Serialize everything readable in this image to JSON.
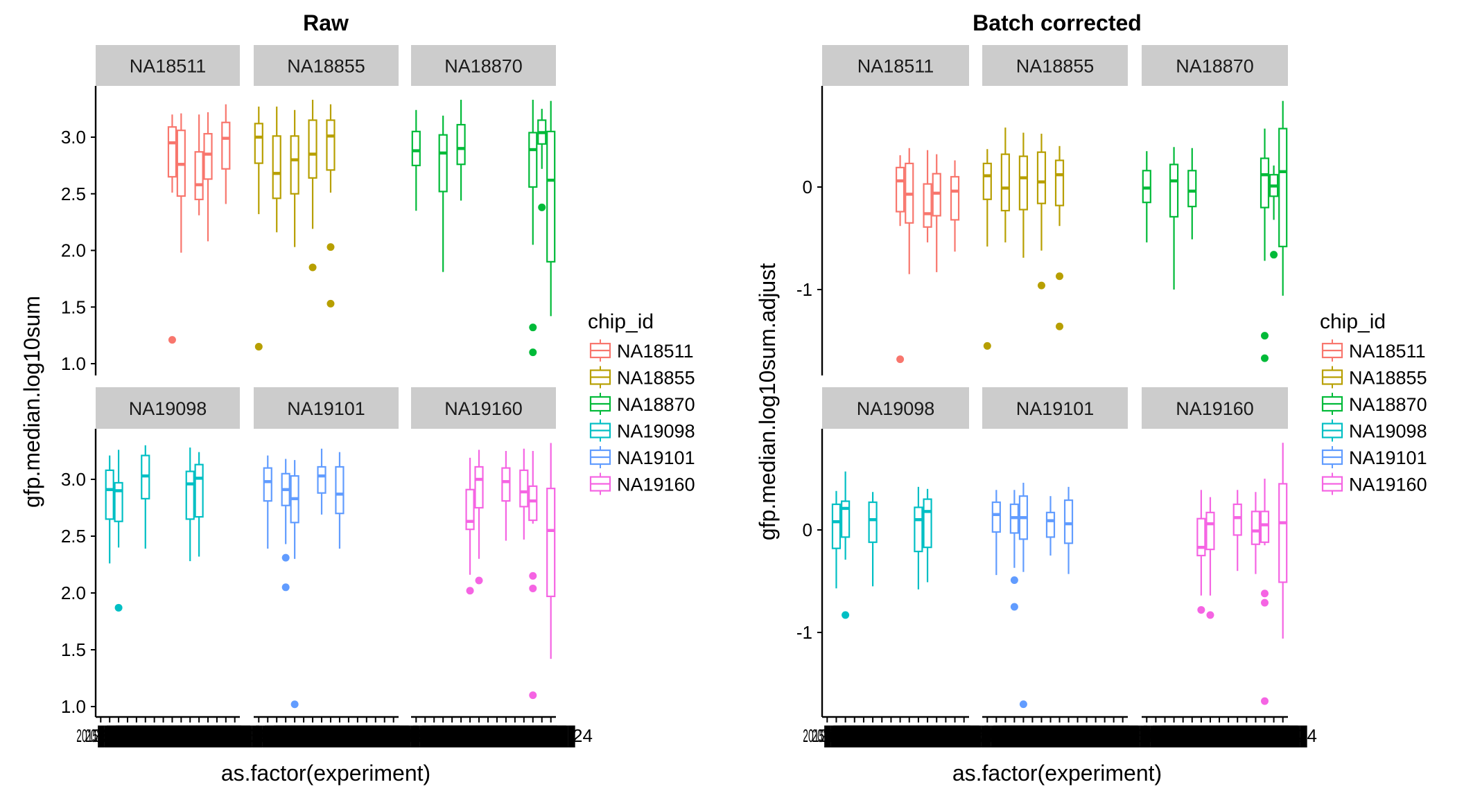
{
  "chart_data": [
    {
      "type": "boxplot",
      "title": "Raw",
      "xlabel": "as.factor(experiment)",
      "ylabel": "gfp.median.log10sum",
      "yticks": [
        1.0,
        1.5,
        2.0,
        2.5,
        3.0
      ],
      "ytick_labels": [
        "1.0",
        "1.5",
        "2.0",
        "2.5",
        "3.0"
      ],
      "n_x_categories_per_facet": 16,
      "x_tick_labels_legible": false,
      "x_tick_label_fragments": {
        "first": "2",
        "last": "24"
      },
      "facet_rows": [
        [
          "NA18511",
          "NA18855",
          "NA18870"
        ],
        [
          "NA19098",
          "NA19101",
          "NA19160"
        ]
      ],
      "facets": {
        "NA18511": [
          {
            "x": 8,
            "whisker_high": 3.2,
            "q3": 3.09,
            "median": 2.95,
            "q1": 2.65,
            "whisker_low": 2.51,
            "outliers": [
              1.21
            ]
          },
          {
            "x": 9,
            "whisker_high": 3.21,
            "q3": 3.06,
            "median": 2.76,
            "q1": 2.48,
            "whisker_low": 1.98,
            "outliers": []
          },
          {
            "x": 11,
            "whisker_high": 3.2,
            "q3": 2.87,
            "median": 2.58,
            "q1": 2.45,
            "whisker_low": 2.31,
            "outliers": []
          },
          {
            "x": 12,
            "whisker_high": 3.22,
            "q3": 3.03,
            "median": 2.85,
            "q1": 2.63,
            "whisker_low": 2.08,
            "outliers": []
          },
          {
            "x": 14,
            "whisker_high": 3.29,
            "q3": 3.13,
            "median": 2.99,
            "q1": 2.72,
            "whisker_low": 2.41,
            "outliers": []
          }
        ],
        "NA18855": [
          {
            "x": 0,
            "whisker_high": 3.27,
            "q3": 3.12,
            "median": 3.0,
            "q1": 2.77,
            "whisker_low": 2.32,
            "outliers": [
              1.15
            ]
          },
          {
            "x": 2,
            "whisker_high": 3.27,
            "q3": 3.01,
            "median": 2.68,
            "q1": 2.46,
            "whisker_low": 2.16,
            "outliers": []
          },
          {
            "x": 4,
            "whisker_high": 3.24,
            "q3": 3.01,
            "median": 2.8,
            "q1": 2.5,
            "whisker_low": 2.03,
            "outliers": []
          },
          {
            "x": 6,
            "whisker_high": 3.33,
            "q3": 3.15,
            "median": 2.85,
            "q1": 2.64,
            "whisker_low": 2.19,
            "outliers": [
              1.85
            ]
          },
          {
            "x": 8,
            "whisker_high": 3.29,
            "q3": 3.15,
            "median": 3.01,
            "q1": 2.71,
            "whisker_low": 2.51,
            "outliers": [
              2.03,
              1.53
            ]
          }
        ],
        "NA18870": [
          {
            "x": 0,
            "whisker_high": 3.24,
            "q3": 3.05,
            "median": 2.88,
            "q1": 2.75,
            "whisker_low": 2.35,
            "outliers": []
          },
          {
            "x": 3,
            "whisker_high": 3.19,
            "q3": 3.02,
            "median": 2.86,
            "q1": 2.52,
            "whisker_low": 1.81,
            "outliers": []
          },
          {
            "x": 5,
            "whisker_high": 3.33,
            "q3": 3.11,
            "median": 2.9,
            "q1": 2.76,
            "whisker_low": 2.44,
            "outliers": []
          },
          {
            "x": 13,
            "whisker_high": 3.33,
            "q3": 3.04,
            "median": 2.89,
            "q1": 2.56,
            "whisker_low": 2.05,
            "outliers": [
              1.32,
              1.1
            ]
          },
          {
            "x": 14,
            "whisker_high": 3.25,
            "q3": 3.15,
            "median": 3.04,
            "q1": 2.94,
            "whisker_low": 2.72,
            "outliers": [
              2.38
            ]
          },
          {
            "x": 15,
            "whisker_high": 3.32,
            "q3": 3.05,
            "median": 2.62,
            "q1": 1.9,
            "whisker_low": 1.42,
            "outliers": []
          }
        ],
        "NA19098": [
          {
            "x": 1,
            "whisker_high": 3.21,
            "q3": 3.08,
            "median": 2.91,
            "q1": 2.65,
            "whisker_low": 2.26,
            "outliers": []
          },
          {
            "x": 2,
            "whisker_high": 3.26,
            "q3": 2.97,
            "median": 2.9,
            "q1": 2.63,
            "whisker_low": 2.4,
            "outliers": [
              1.87
            ]
          },
          {
            "x": 5,
            "whisker_high": 3.3,
            "q3": 3.21,
            "median": 3.03,
            "q1": 2.83,
            "whisker_low": 2.39,
            "outliers": []
          },
          {
            "x": 10,
            "whisker_high": 3.28,
            "q3": 3.07,
            "median": 2.96,
            "q1": 2.65,
            "whisker_low": 2.28,
            "outliers": []
          },
          {
            "x": 11,
            "whisker_high": 3.24,
            "q3": 3.13,
            "median": 3.01,
            "q1": 2.67,
            "whisker_low": 2.32,
            "outliers": []
          }
        ],
        "NA19101": [
          {
            "x": 1,
            "whisker_high": 3.21,
            "q3": 3.1,
            "median": 2.98,
            "q1": 2.81,
            "whisker_low": 2.39,
            "outliers": []
          },
          {
            "x": 3,
            "whisker_high": 3.18,
            "q3": 3.05,
            "median": 2.91,
            "q1": 2.77,
            "whisker_low": 2.43,
            "outliers": [
              2.31,
              2.05
            ]
          },
          {
            "x": 4,
            "whisker_high": 3.17,
            "q3": 3.03,
            "median": 2.83,
            "q1": 2.62,
            "whisker_low": 2.3,
            "outliers": [
              1.02
            ]
          },
          {
            "x": 7,
            "whisker_high": 3.27,
            "q3": 3.11,
            "median": 3.03,
            "q1": 2.88,
            "whisker_low": 2.69,
            "outliers": []
          },
          {
            "x": 9,
            "whisker_high": 3.24,
            "q3": 3.11,
            "median": 2.87,
            "q1": 2.7,
            "whisker_low": 2.39,
            "outliers": []
          }
        ],
        "NA19160": [
          {
            "x": 6,
            "whisker_high": 3.19,
            "q3": 2.91,
            "median": 2.63,
            "q1": 2.56,
            "whisker_low": 2.16,
            "outliers": [
              2.02
            ]
          },
          {
            "x": 7,
            "whisker_high": 3.26,
            "q3": 3.11,
            "median": 3.0,
            "q1": 2.75,
            "whisker_low": 2.3,
            "outliers": [
              2.11
            ]
          },
          {
            "x": 10,
            "whisker_high": 3.25,
            "q3": 3.1,
            "median": 2.98,
            "q1": 2.81,
            "whisker_low": 2.46,
            "outliers": []
          },
          {
            "x": 12,
            "whisker_high": 3.27,
            "q3": 3.08,
            "median": 2.89,
            "q1": 2.76,
            "whisker_low": 2.47,
            "outliers": []
          },
          {
            "x": 13,
            "whisker_high": 3.25,
            "q3": 2.94,
            "median": 2.81,
            "q1": 2.64,
            "whisker_low": 2.61,
            "outliers": [
              2.15,
              2.04,
              1.1
            ]
          },
          {
            "x": 15,
            "whisker_high": 3.32,
            "q3": 2.92,
            "median": 2.55,
            "q1": 1.97,
            "whisker_low": 1.42,
            "outliers": []
          }
        ]
      }
    },
    {
      "type": "boxplot",
      "title": "Batch corrected",
      "xlabel": "as.factor(experiment)",
      "ylabel": "gfp.median.log10sum.adjust",
      "yticks": [
        -1,
        0
      ],
      "ytick_labels": [
        "-1",
        "0"
      ],
      "n_x_categories_per_facet": 16,
      "x_tick_labels_legible": false,
      "x_tick_label_fragments": {
        "first": "2",
        "last": "24"
      },
      "facet_rows": [
        [
          "NA18511",
          "NA18855",
          "NA18870"
        ],
        [
          "NA19098",
          "NA19101",
          "NA19160"
        ]
      ],
      "facets": {
        "NA18511": [
          {
            "x": 8,
            "whisker_high": 0.31,
            "q3": 0.19,
            "median": 0.06,
            "q1": -0.24,
            "whisker_low": -0.38,
            "outliers": [
              -1.68
            ]
          },
          {
            "x": 9,
            "whisker_high": 0.38,
            "q3": 0.23,
            "median": -0.07,
            "q1": -0.35,
            "whisker_low": -0.85,
            "outliers": []
          },
          {
            "x": 11,
            "whisker_high": 0.36,
            "q3": 0.03,
            "median": -0.26,
            "q1": -0.39,
            "whisker_low": -0.54,
            "outliers": []
          },
          {
            "x": 12,
            "whisker_high": 0.32,
            "q3": 0.13,
            "median": -0.06,
            "q1": -0.28,
            "whisker_low": -0.83,
            "outliers": []
          },
          {
            "x": 14,
            "whisker_high": 0.26,
            "q3": 0.1,
            "median": -0.04,
            "q1": -0.32,
            "whisker_low": -0.63,
            "outliers": []
          }
        ],
        "NA18855": [
          {
            "x": 0,
            "whisker_high": 0.37,
            "q3": 0.23,
            "median": 0.11,
            "q1": -0.12,
            "whisker_low": -0.58,
            "outliers": [
              -1.55
            ]
          },
          {
            "x": 2,
            "whisker_high": 0.58,
            "q3": 0.32,
            "median": -0.01,
            "q1": -0.23,
            "whisker_low": -0.54,
            "outliers": []
          },
          {
            "x": 4,
            "whisker_high": 0.53,
            "q3": 0.3,
            "median": 0.09,
            "q1": -0.22,
            "whisker_low": -0.69,
            "outliers": []
          },
          {
            "x": 6,
            "whisker_high": 0.52,
            "q3": 0.34,
            "median": 0.05,
            "q1": -0.16,
            "whisker_low": -0.62,
            "outliers": [
              -0.96
            ]
          },
          {
            "x": 8,
            "whisker_high": 0.4,
            "q3": 0.26,
            "median": 0.12,
            "q1": -0.18,
            "whisker_low": -0.38,
            "outliers": [
              -0.87,
              -1.36
            ]
          }
        ],
        "NA18870": [
          {
            "x": 0,
            "whisker_high": 0.35,
            "q3": 0.16,
            "median": -0.01,
            "q1": -0.15,
            "whisker_low": -0.54,
            "outliers": []
          },
          {
            "x": 3,
            "whisker_high": 0.39,
            "q3": 0.22,
            "median": 0.06,
            "q1": -0.29,
            "whisker_low": -1.0,
            "outliers": []
          },
          {
            "x": 5,
            "whisker_high": 0.38,
            "q3": 0.16,
            "median": -0.04,
            "q1": -0.19,
            "whisker_low": -0.51,
            "outliers": []
          },
          {
            "x": 13,
            "whisker_high": 0.57,
            "q3": 0.28,
            "median": 0.12,
            "q1": -0.2,
            "whisker_low": -0.72,
            "outliers": [
              -1.45,
              -1.67
            ]
          },
          {
            "x": 14,
            "whisker_high": 0.21,
            "q3": 0.12,
            "median": 0.01,
            "q1": -0.09,
            "whisker_low": -0.32,
            "outliers": [
              -0.66
            ]
          },
          {
            "x": 15,
            "whisker_high": 0.84,
            "q3": 0.57,
            "median": 0.15,
            "q1": -0.58,
            "whisker_low": -1.06,
            "outliers": []
          }
        ],
        "NA19098": [
          {
            "x": 1,
            "whisker_high": 0.38,
            "q3": 0.25,
            "median": 0.08,
            "q1": -0.18,
            "whisker_low": -0.57,
            "outliers": []
          },
          {
            "x": 2,
            "whisker_high": 0.57,
            "q3": 0.28,
            "median": 0.21,
            "q1": -0.07,
            "whisker_low": -0.29,
            "outliers": [
              -0.83
            ]
          },
          {
            "x": 5,
            "whisker_high": 0.37,
            "q3": 0.27,
            "median": 0.1,
            "q1": -0.12,
            "whisker_low": -0.55,
            "outliers": []
          },
          {
            "x": 10,
            "whisker_high": 0.42,
            "q3": 0.22,
            "median": 0.1,
            "q1": -0.21,
            "whisker_low": -0.58,
            "outliers": []
          },
          {
            "x": 11,
            "whisker_high": 0.4,
            "q3": 0.3,
            "median": 0.18,
            "q1": -0.17,
            "whisker_low": -0.51,
            "outliers": []
          }
        ],
        "NA19101": [
          {
            "x": 1,
            "whisker_high": 0.39,
            "q3": 0.27,
            "median": 0.15,
            "q1": -0.02,
            "whisker_low": -0.44,
            "outliers": []
          },
          {
            "x": 3,
            "whisker_high": 0.39,
            "q3": 0.25,
            "median": 0.12,
            "q1": -0.03,
            "whisker_low": -0.37,
            "outliers": [
              -0.49,
              -0.75
            ]
          },
          {
            "x": 4,
            "whisker_high": 0.46,
            "q3": 0.33,
            "median": 0.12,
            "q1": -0.09,
            "whisker_low": -0.41,
            "outliers": [
              -1.7
            ]
          },
          {
            "x": 7,
            "whisker_high": 0.33,
            "q3": 0.17,
            "median": 0.09,
            "q1": -0.07,
            "whisker_low": -0.25,
            "outliers": []
          },
          {
            "x": 9,
            "whisker_high": 0.42,
            "q3": 0.29,
            "median": 0.06,
            "q1": -0.13,
            "whisker_low": -0.43,
            "outliers": []
          }
        ],
        "NA19160": [
          {
            "x": 6,
            "whisker_high": 0.39,
            "q3": 0.11,
            "median": -0.17,
            "q1": -0.25,
            "whisker_low": -0.64,
            "outliers": [
              -0.78
            ]
          },
          {
            "x": 7,
            "whisker_high": 0.32,
            "q3": 0.17,
            "median": 0.06,
            "q1": -0.19,
            "whisker_low": -0.64,
            "outliers": [
              -0.83
            ]
          },
          {
            "x": 10,
            "whisker_high": 0.39,
            "q3": 0.25,
            "median": 0.12,
            "q1": -0.05,
            "whisker_low": -0.4,
            "outliers": []
          },
          {
            "x": 12,
            "whisker_high": 0.37,
            "q3": 0.18,
            "median": -0.01,
            "q1": -0.14,
            "whisker_low": -0.43,
            "outliers": []
          },
          {
            "x": 13,
            "whisker_high": 0.5,
            "q3": 0.18,
            "median": 0.05,
            "q1": -0.12,
            "whisker_low": -0.15,
            "outliers": [
              -0.62,
              -0.71,
              -1.67
            ]
          },
          {
            "x": 15,
            "whisker_high": 0.85,
            "q3": 0.45,
            "median": 0.07,
            "q1": -0.51,
            "whisker_low": -1.06,
            "outliers": []
          }
        ]
      }
    }
  ],
  "legend": {
    "title": "chip_id",
    "placement": "right",
    "entries": [
      {
        "label": "NA18511",
        "color": "#F8766D"
      },
      {
        "label": "NA18855",
        "color": "#B79F00"
      },
      {
        "label": "NA18870",
        "color": "#00BA38"
      },
      {
        "label": "NA19098",
        "color": "#00BFC4"
      },
      {
        "label": "NA19101",
        "color": "#619CFF"
      },
      {
        "label": "NA19160",
        "color": "#F564E3"
      }
    ]
  },
  "strip_color": "#CCCCCC"
}
